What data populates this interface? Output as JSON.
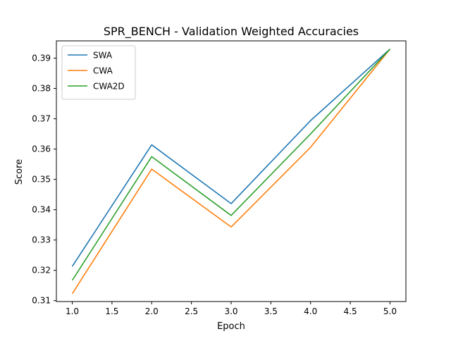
{
  "chart_data": {
    "type": "line",
    "title": "SPR_BENCH - Validation Weighted Accuracies",
    "xlabel": "Epoch",
    "ylabel": "Score",
    "x": [
      1,
      2,
      3,
      4,
      5
    ],
    "xlim": [
      0.8,
      5.2
    ],
    "ylim": [
      0.3097,
      0.3957
    ],
    "xticks": [
      1.0,
      1.5,
      2.0,
      2.5,
      3.0,
      3.5,
      4.0,
      4.5,
      5.0
    ],
    "xtick_labels": [
      "1.0",
      "1.5",
      "2.0",
      "2.5",
      "3.0",
      "3.5",
      "4.0",
      "4.5",
      "5.0"
    ],
    "yticks": [
      0.31,
      0.32,
      0.33,
      0.34,
      0.35,
      0.36,
      0.37,
      0.38,
      0.39
    ],
    "ytick_labels": [
      "0.31",
      "0.32",
      "0.33",
      "0.34",
      "0.35",
      "0.36",
      "0.37",
      "0.38",
      "0.39"
    ],
    "grid": false,
    "legend_position": "top-left",
    "series": [
      {
        "name": "SWA",
        "color": "#1f77b4",
        "values": [
          0.3213,
          0.3614,
          0.342,
          0.3694,
          0.393
        ]
      },
      {
        "name": "CWA",
        "color": "#ff7f0e",
        "values": [
          0.3123,
          0.3534,
          0.3343,
          0.3606,
          0.393
        ]
      },
      {
        "name": "CWA2D",
        "color": "#2ca02c",
        "values": [
          0.3167,
          0.3575,
          0.3381,
          0.365,
          0.393
        ]
      }
    ]
  }
}
